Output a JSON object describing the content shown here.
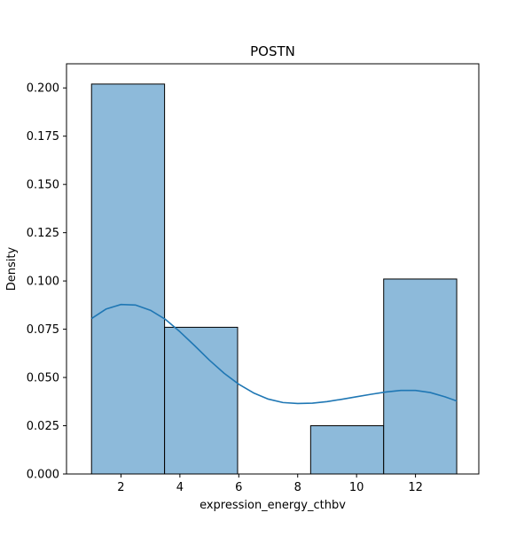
{
  "chart_data": {
    "type": "histogram",
    "title": "POSTN",
    "xlabel": "expression_energy_cthbv",
    "ylabel": "Density",
    "xlim": [
      0.15,
      14.15
    ],
    "ylim": [
      0,
      0.2125
    ],
    "x_ticks": [
      2,
      4,
      6,
      8,
      10,
      12
    ],
    "y_ticks": [
      0.0,
      0.025,
      0.05,
      0.075,
      0.1,
      0.125,
      0.15,
      0.175,
      0.2
    ],
    "y_tick_labels": [
      "0.000",
      "0.025",
      "0.050",
      "0.075",
      "0.100",
      "0.125",
      "0.150",
      "0.175",
      "0.200"
    ],
    "bins": [
      {
        "x0": 1.0,
        "x1": 3.48,
        "density": 0.202
      },
      {
        "x0": 3.48,
        "x1": 5.96,
        "density": 0.076
      },
      {
        "x0": 5.96,
        "x1": 8.44,
        "density": 0.0
      },
      {
        "x0": 8.44,
        "x1": 10.92,
        "density": 0.025
      },
      {
        "x0": 10.92,
        "x1": 13.4,
        "density": 0.101
      }
    ],
    "kde": {
      "x": [
        1.0,
        1.5,
        2.0,
        2.5,
        3.0,
        3.5,
        4.0,
        4.5,
        5.0,
        5.5,
        6.0,
        6.5,
        7.0,
        7.5,
        8.0,
        8.5,
        9.0,
        9.5,
        10.0,
        10.5,
        11.0,
        11.5,
        12.0,
        12.5,
        13.0,
        13.4
      ],
      "y": [
        0.0805,
        0.0855,
        0.0878,
        0.0875,
        0.0848,
        0.0802,
        0.0737,
        0.0665,
        0.059,
        0.0522,
        0.0465,
        0.042,
        0.0388,
        0.037,
        0.0365,
        0.0367,
        0.0375,
        0.0387,
        0.04,
        0.0413,
        0.0425,
        0.0433,
        0.0433,
        0.0422,
        0.04,
        0.0378
      ]
    },
    "colors": {
      "bar_fill": "#8dbada",
      "bar_edge": "#000000",
      "kde_line": "#1f77b4"
    },
    "grid": false,
    "legend": "none"
  }
}
